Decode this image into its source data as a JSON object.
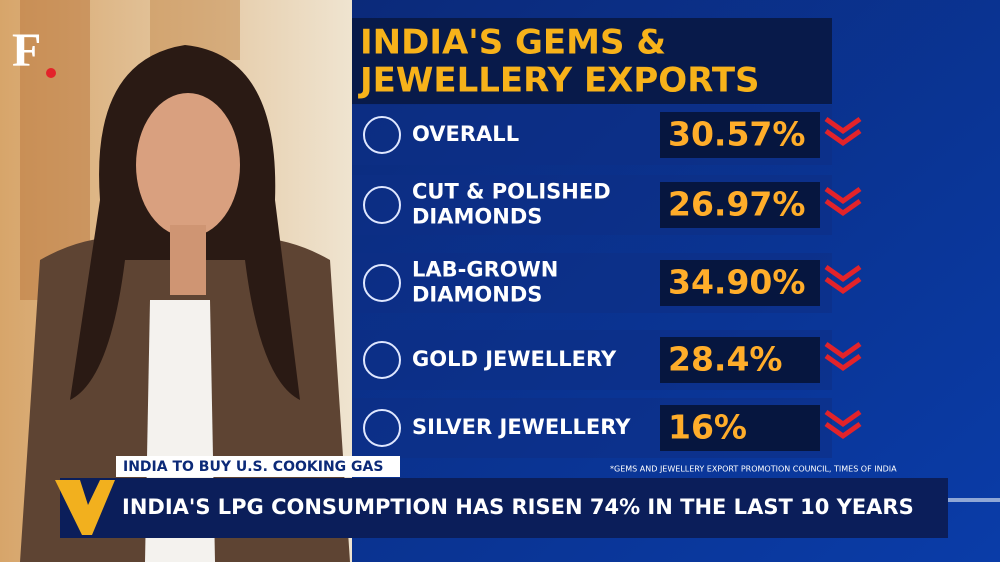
{
  "logo": {
    "letter": "F"
  },
  "panel": {
    "title_lines": [
      "INDIA'S GEMS &",
      "JEWELLERY EXPORTS"
    ],
    "rows": [
      {
        "label_lines": [
          "OVERALL"
        ],
        "value": "30.57%"
      },
      {
        "label_lines": [
          "CUT & POLISHED",
          "DIAMONDS"
        ],
        "value": "26.97%"
      },
      {
        "label_lines": [
          "LAB-GROWN",
          "DIAMONDS"
        ],
        "value": "34.90%"
      },
      {
        "label_lines": [
          "GOLD JEWELLERY"
        ],
        "value": "28.4%"
      },
      {
        "label_lines": [
          "SILVER JEWELLERY"
        ],
        "value": "16%"
      }
    ],
    "source": "*GEMS AND JEWELLERY EXPORT PROMOTION COUNCIL, TIMES OF INDIA"
  },
  "ticker": {
    "tag": "INDIA TO BUY U.S. COOKING GAS",
    "headline": "INDIA'S LPG CONSUMPTION HAS RISEN 74% IN THE LAST 10 YEARS"
  }
}
